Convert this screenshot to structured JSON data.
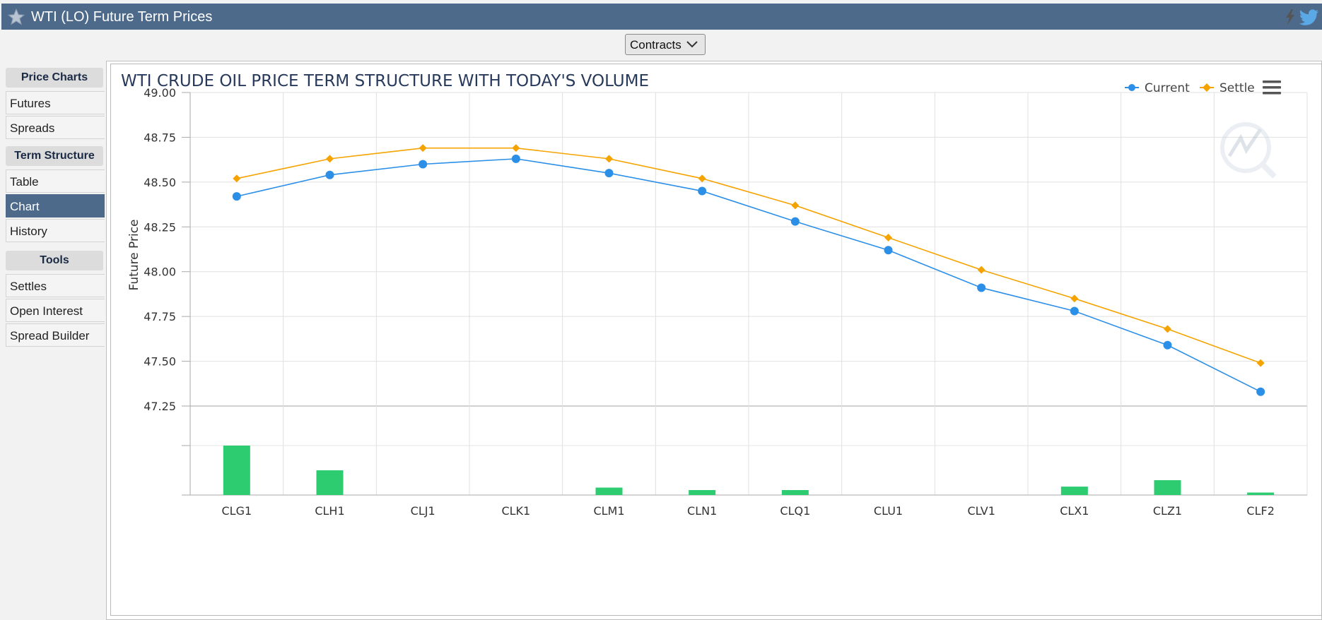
{
  "header": {
    "title": "WTI (LO) Future Term Prices",
    "star_icon": "star-icon",
    "bolt_icon": "lightning-icon",
    "twitter_icon": "twitter-icon"
  },
  "contracts_button": {
    "label": "Contracts",
    "icon": "chevron-down-icon"
  },
  "sidebar": {
    "sections": [
      {
        "heading": "Price Charts",
        "items": [
          {
            "label": "Futures",
            "active": false
          },
          {
            "label": "Spreads",
            "active": false
          }
        ]
      },
      {
        "heading": "Term Structure",
        "items": [
          {
            "label": "Table",
            "active": false
          },
          {
            "label": "Chart",
            "active": true
          },
          {
            "label": "History",
            "active": false
          }
        ]
      },
      {
        "heading": "Tools",
        "items": [
          {
            "label": "Settles",
            "active": false
          },
          {
            "label": "Open Interest",
            "active": false
          },
          {
            "label": "Spread Builder",
            "active": false
          }
        ]
      }
    ]
  },
  "chart_data": {
    "type": "line",
    "title": "WTI CRUDE OIL PRICE TERM STRUCTURE WITH TODAY'S VOLUME",
    "ylabel": "Future Price",
    "xlabel": "",
    "ylim": [
      47.0,
      49.0
    ],
    "y_ticks": [
      "49.00",
      "48.75",
      "48.50",
      "48.25",
      "48.00",
      "47.75",
      "47.50",
      "47.25"
    ],
    "categories": [
      "CLG1",
      "CLH1",
      "CLJ1",
      "CLK1",
      "CLM1",
      "CLN1",
      "CLQ1",
      "CLU1",
      "CLV1",
      "CLX1",
      "CLZ1",
      "CLF2"
    ],
    "series": [
      {
        "name": "Current",
        "color": "#2b8fe8",
        "marker": "circle",
        "values": [
          48.42,
          48.54,
          48.6,
          48.63,
          48.55,
          48.45,
          48.28,
          48.12,
          47.91,
          47.78,
          47.59,
          47.33
        ]
      },
      {
        "name": "Settle",
        "color": "#f5a300",
        "marker": "diamond",
        "values": [
          48.52,
          48.63,
          48.69,
          48.69,
          48.63,
          48.52,
          48.37,
          48.19,
          48.01,
          47.85,
          47.68,
          47.49
        ]
      }
    ],
    "volume": {
      "color": "#2ecc71",
      "values": [
        1.0,
        0.5,
        0,
        0,
        0.15,
        0.1,
        0.1,
        0,
        0,
        0.17,
        0.3,
        0.05
      ]
    },
    "legend_position": "top-right",
    "grid": true,
    "menu_icon": "hamburger-menu-icon",
    "watermark_icon": "logo-watermark-icon"
  }
}
